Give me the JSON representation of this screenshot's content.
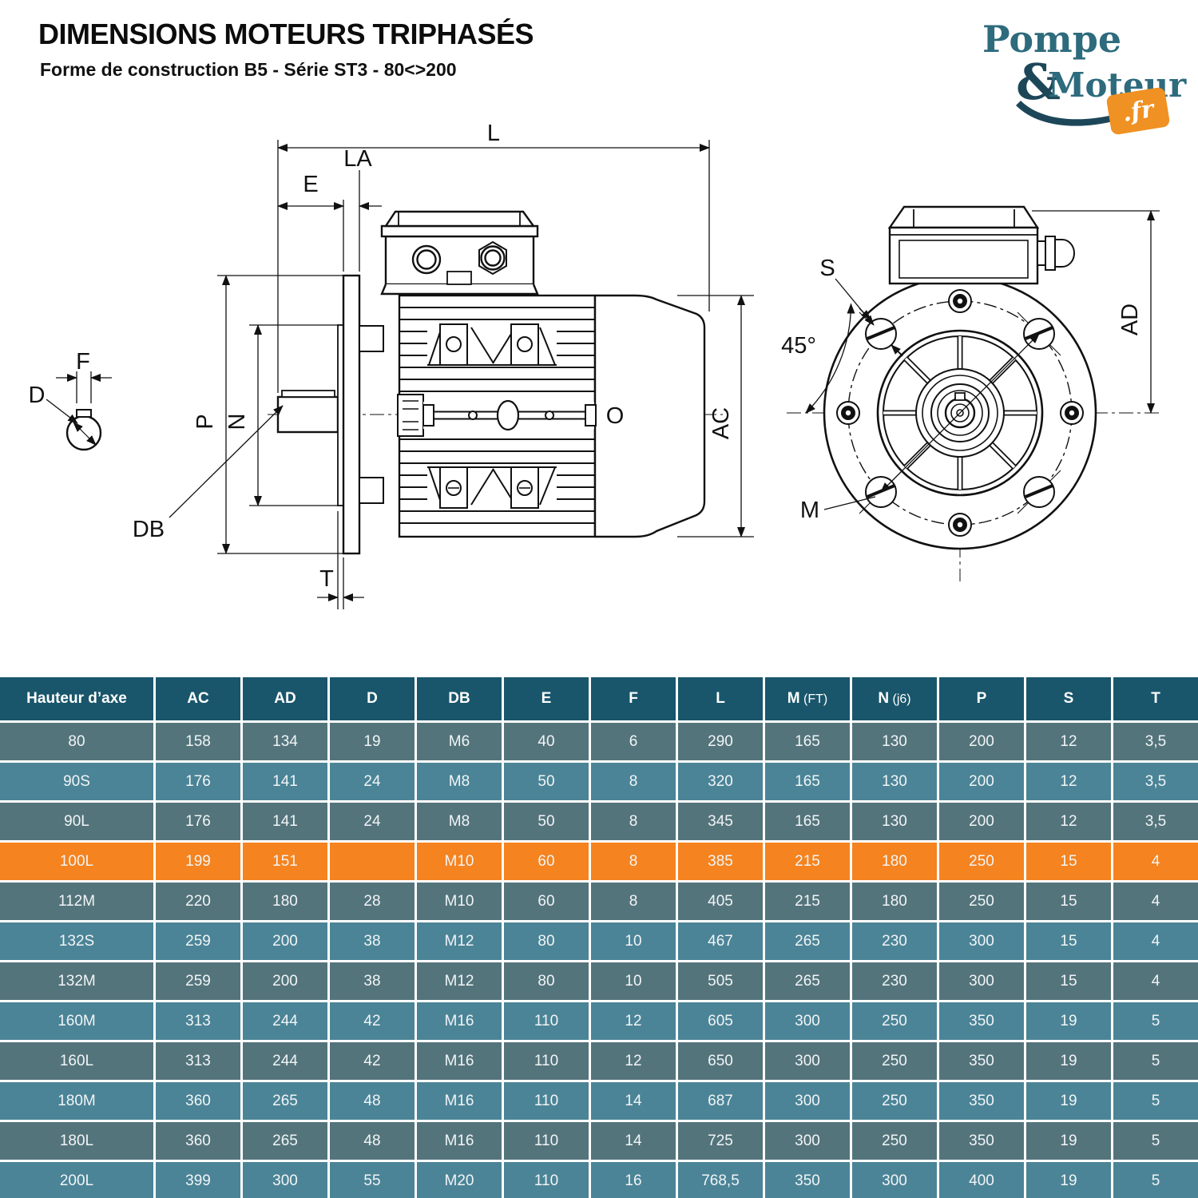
{
  "header": {
    "title": "DIMENSIONS MOTEURS TRIPHASÉS",
    "subtitle": "Forme de construction B5 - Série ST3 - 80<>200"
  },
  "logo": {
    "word1": "Pompe",
    "amp": "&",
    "word2": "Moteur",
    "tld": ".fr"
  },
  "diagram": {
    "labels": {
      "L": "L",
      "E": "E",
      "LA": "LA",
      "P": "P",
      "N": "N",
      "DB": "DB",
      "T": "T",
      "AC": "AC",
      "O": "O",
      "F": "F",
      "D": "D",
      "S": "S",
      "angle": "45°",
      "M": "M",
      "AD": "AD"
    }
  },
  "table": {
    "columns": [
      {
        "label": "Hauteur d’axe",
        "suffix": ""
      },
      {
        "label": "AC",
        "suffix": ""
      },
      {
        "label": "AD",
        "suffix": ""
      },
      {
        "label": "D",
        "suffix": ""
      },
      {
        "label": "DB",
        "suffix": ""
      },
      {
        "label": "E",
        "suffix": ""
      },
      {
        "label": "F",
        "suffix": ""
      },
      {
        "label": "L",
        "suffix": ""
      },
      {
        "label": "M",
        "suffix": " (FT)"
      },
      {
        "label": "N",
        "suffix": " (j6)"
      },
      {
        "label": "P",
        "suffix": ""
      },
      {
        "label": "S",
        "suffix": ""
      },
      {
        "label": "T",
        "suffix": ""
      }
    ],
    "rows": [
      {
        "name": "80",
        "highlight": false,
        "values": [
          "158",
          "134",
          "19",
          "M6",
          "40",
          "6",
          "290",
          "165",
          "130",
          "200",
          "12",
          "3,5"
        ]
      },
      {
        "name": "90S",
        "highlight": false,
        "values": [
          "176",
          "141",
          "24",
          "M8",
          "50",
          "8",
          "320",
          "165",
          "130",
          "200",
          "12",
          "3,5"
        ]
      },
      {
        "name": "90L",
        "highlight": false,
        "values": [
          "176",
          "141",
          "24",
          "M8",
          "50",
          "8",
          "345",
          "165",
          "130",
          "200",
          "12",
          "3,5"
        ]
      },
      {
        "name": "100L",
        "highlight": true,
        "values": [
          "199",
          "151",
          "",
          "M10",
          "60",
          "8",
          "385",
          "215",
          "180",
          "250",
          "15",
          "4"
        ]
      },
      {
        "name": "112M",
        "highlight": false,
        "values": [
          "220",
          "180",
          "28",
          "M10",
          "60",
          "8",
          "405",
          "215",
          "180",
          "250",
          "15",
          "4"
        ]
      },
      {
        "name": "132S",
        "highlight": false,
        "values": [
          "259",
          "200",
          "38",
          "M12",
          "80",
          "10",
          "467",
          "265",
          "230",
          "300",
          "15",
          "4"
        ]
      },
      {
        "name": "132M",
        "highlight": false,
        "values": [
          "259",
          "200",
          "38",
          "M12",
          "80",
          "10",
          "505",
          "265",
          "230",
          "300",
          "15",
          "4"
        ]
      },
      {
        "name": "160M",
        "highlight": false,
        "values": [
          "313",
          "244",
          "42",
          "M16",
          "110",
          "12",
          "605",
          "300",
          "250",
          "350",
          "19",
          "5"
        ]
      },
      {
        "name": "160L",
        "highlight": false,
        "values": [
          "313",
          "244",
          "42",
          "M16",
          "110",
          "12",
          "650",
          "300",
          "250",
          "350",
          "19",
          "5"
        ]
      },
      {
        "name": "180M",
        "highlight": false,
        "values": [
          "360",
          "265",
          "48",
          "M16",
          "110",
          "14",
          "687",
          "300",
          "250",
          "350",
          "19",
          "5"
        ]
      },
      {
        "name": "180L",
        "highlight": false,
        "values": [
          "360",
          "265",
          "48",
          "M16",
          "110",
          "14",
          "725",
          "300",
          "250",
          "350",
          "19",
          "5"
        ]
      },
      {
        "name": "200L",
        "highlight": false,
        "values": [
          "399",
          "300",
          "55",
          "M20",
          "110",
          "16",
          "768,5",
          "350",
          "300",
          "400",
          "19",
          "5"
        ]
      }
    ]
  },
  "colors": {
    "table_header": "#19566b",
    "table_row_dark": "#54747c",
    "table_row_light": "#4b8497",
    "table_highlight": "#f5831f",
    "logo_teal": "#2d6b7d",
    "logo_navy": "#1d4759",
    "logo_orange": "#ef9123",
    "line": "#111111"
  }
}
